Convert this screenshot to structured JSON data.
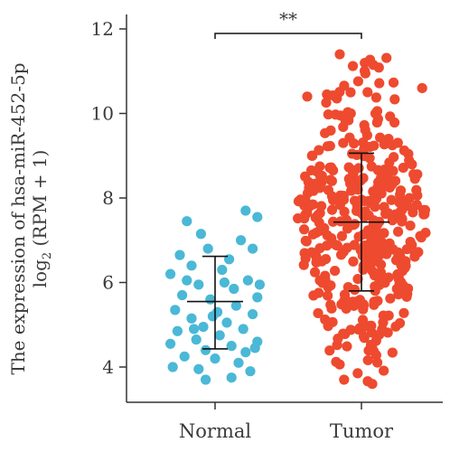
{
  "chart_data": {
    "type": "scatter",
    "ylabel_line1": "The expression of hsa-miR-452-5p",
    "ylabel_line2_prefix": "log",
    "ylabel_line2_sub": "2",
    "ylabel_line2_suffix": " (RPM + 1)",
    "ylim": [
      3.4,
      12
    ],
    "yticks": [
      4,
      6,
      8,
      10,
      12
    ],
    "categories": [
      "Normal",
      "Tumor"
    ],
    "significance": "**",
    "colors": {
      "Normal": "#4ab8d6",
      "Tumor": "#ee4a2f"
    },
    "summary": [
      {
        "category": "Normal",
        "mean": 5.55,
        "upper": 6.62,
        "lower": 4.43
      },
      {
        "category": "Tumor",
        "mean": 7.43,
        "upper": 9.06,
        "lower": 5.8
      }
    ],
    "series": [
      {
        "category": "Normal",
        "n": 48,
        "min": 3.7,
        "max": 7.7,
        "mean": 5.55,
        "sd": 1.0,
        "points": [
          {
            "x": -0.12,
            "y": 7.45
          },
          {
            "x": 0.18,
            "y": 7.55
          },
          {
            "x": 0.13,
            "y": 7.7
          },
          {
            "x": -0.06,
            "y": 7.15
          },
          {
            "x": 0.11,
            "y": 7.0
          },
          {
            "x": 0.16,
            "y": 6.8
          },
          {
            "x": -0.15,
            "y": 6.65
          },
          {
            "x": -0.03,
            "y": 6.8
          },
          {
            "x": 0.06,
            "y": 6.55
          },
          {
            "x": -0.1,
            "y": 6.4
          },
          {
            "x": 0.03,
            "y": 6.3
          },
          {
            "x": -0.19,
            "y": 6.2
          },
          {
            "x": 0.14,
            "y": 6.05
          },
          {
            "x": -0.07,
            "y": 5.95
          },
          {
            "x": 0.08,
            "y": 5.85
          },
          {
            "x": -0.14,
            "y": 5.7
          },
          {
            "x": 0.18,
            "y": 5.65
          },
          {
            "x": -0.02,
            "y": 5.6
          },
          {
            "x": 0.09,
            "y": 5.45
          },
          {
            "x": -0.17,
            "y": 5.35
          },
          {
            "x": 0.01,
            "y": 5.3
          },
          {
            "x": 0.16,
            "y": 5.25
          },
          {
            "x": -0.1,
            "y": 5.15
          },
          {
            "x": 0.05,
            "y": 5.05
          },
          {
            "x": -0.05,
            "y": 4.95
          },
          {
            "x": 0.12,
            "y": 4.9
          },
          {
            "x": -0.16,
            "y": 4.85
          },
          {
            "x": 0.02,
            "y": 4.75
          },
          {
            "x": -0.08,
            "y": 4.65
          },
          {
            "x": 0.18,
            "y": 4.6
          },
          {
            "x": -0.19,
            "y": 4.55
          },
          {
            "x": 0.07,
            "y": 4.5
          },
          {
            "x": -0.04,
            "y": 4.4
          },
          {
            "x": 0.13,
            "y": 4.35
          },
          {
            "x": -0.13,
            "y": 4.25
          },
          {
            "x": 0.0,
            "y": 4.2
          },
          {
            "x": 0.1,
            "y": 4.1
          },
          {
            "x": -0.18,
            "y": 4.0
          },
          {
            "x": -0.07,
            "y": 3.95
          },
          {
            "x": 0.15,
            "y": 3.9
          },
          {
            "x": -0.04,
            "y": 3.7
          },
          {
            "x": 0.07,
            "y": 3.75
          },
          {
            "x": 0.19,
            "y": 5.95
          },
          {
            "x": -0.12,
            "y": 6.05
          },
          {
            "x": 0.04,
            "y": 6.0
          },
          {
            "x": -0.01,
            "y": 5.2
          },
          {
            "x": 0.17,
            "y": 4.45
          },
          {
            "x": -0.09,
            "y": 4.9
          }
        ]
      },
      {
        "category": "Tumor",
        "n": 400,
        "min": 3.6,
        "max": 11.4,
        "mean": 7.43,
        "sd": 1.63,
        "highlight_points": [
          {
            "x": -0.1,
            "y": 11.4
          },
          {
            "x": 0.28,
            "y": 10.6
          },
          {
            "x": -0.25,
            "y": 10.4
          },
          {
            "x": -0.05,
            "y": 10.5
          },
          {
            "x": 0.05,
            "y": 3.6
          },
          {
            "x": -0.08,
            "y": 3.7
          }
        ]
      }
    ]
  }
}
